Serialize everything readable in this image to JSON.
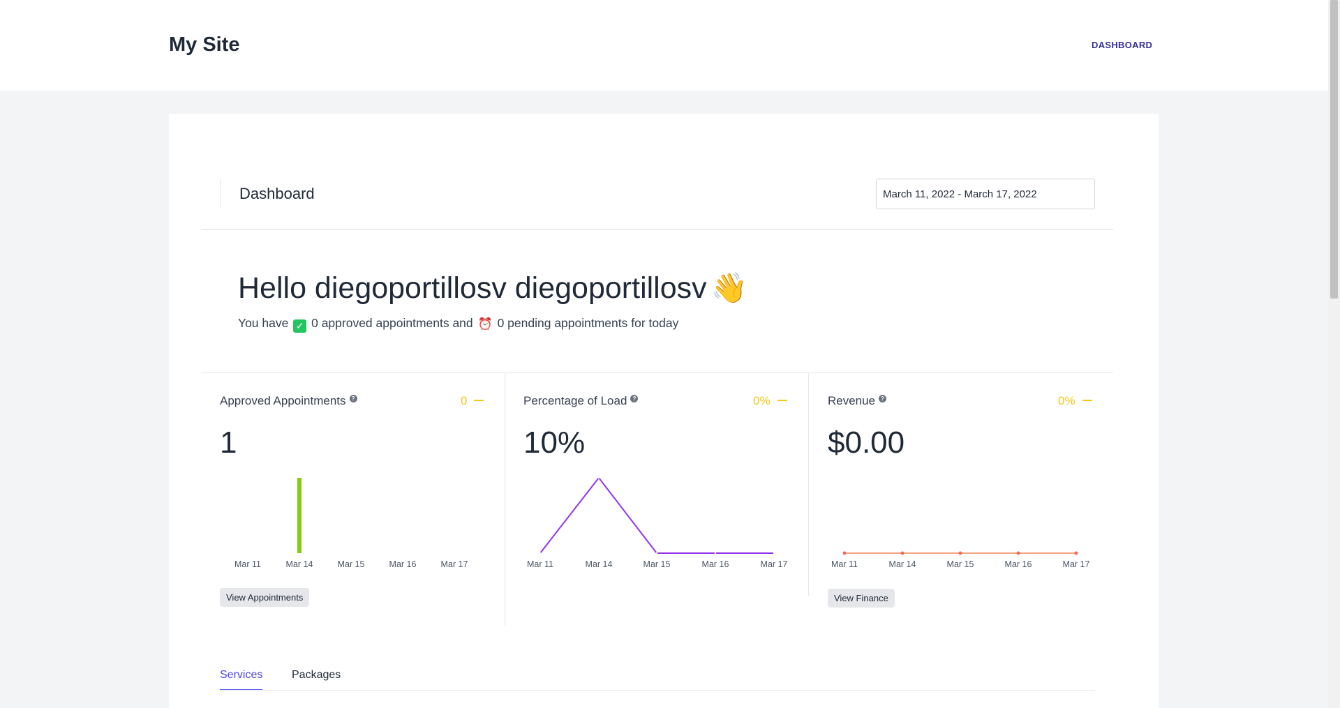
{
  "header": {
    "site_title": "My Site",
    "nav_dashboard": "DASHBOARD"
  },
  "dashboard": {
    "title": "Dashboard",
    "date_range": "March 11, 2022 - March 17, 2022"
  },
  "greeting": {
    "title": "Hello diegoportillosv diegoportillosv",
    "wave_emoji": "👋",
    "sub_prefix": "You have",
    "check_emoji": "✓",
    "approved_text": "0 approved appointments and",
    "clock_emoji": "⏰",
    "pending_text": "0 pending appointments for today"
  },
  "stats": [
    {
      "title": "Approved Appointments",
      "delta": "0",
      "value": "1",
      "button": "View Appointments",
      "chart_color": "#84cc16"
    },
    {
      "title": "Percentage of Load",
      "delta": "0%",
      "value": "10%",
      "button": "",
      "chart_color": "#9333ea"
    },
    {
      "title": "Revenue",
      "delta": "0%",
      "value": "$0.00",
      "button": "View Finance",
      "chart_color": "#f4a582"
    }
  ],
  "tabs": [
    {
      "label": "Services",
      "active": true
    },
    {
      "label": "Packages",
      "active": false
    }
  ],
  "chart_data": [
    {
      "type": "bar",
      "categories": [
        "Mar 11",
        "Mar 14",
        "Mar 15",
        "Mar 16",
        "Mar 17"
      ],
      "values": [
        0,
        1,
        0,
        0,
        0
      ],
      "ylim": [
        0,
        1
      ],
      "color": "#84cc16"
    },
    {
      "type": "line",
      "categories": [
        "Mar 11",
        "Mar 14",
        "Mar 15",
        "Mar 16",
        "Mar 17"
      ],
      "values": [
        0,
        10,
        0,
        0,
        0
      ],
      "ylim": [
        0,
        10
      ],
      "color": "#9333ea"
    },
    {
      "type": "line",
      "categories": [
        "Mar 11",
        "Mar 14",
        "Mar 15",
        "Mar 16",
        "Mar 17"
      ],
      "values": [
        0,
        0,
        0,
        0,
        0
      ],
      "ylim": [
        0,
        1
      ],
      "color": "#f4a582",
      "markers": true
    }
  ]
}
